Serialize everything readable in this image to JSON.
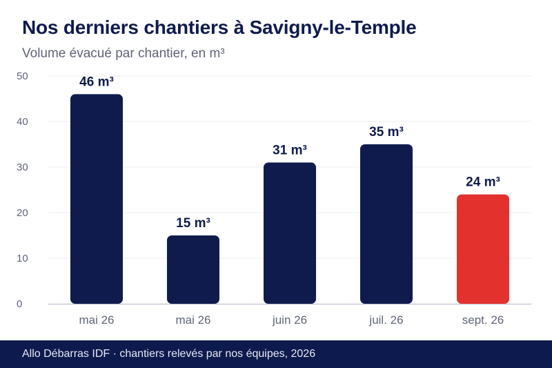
{
  "header": {
    "title": "Nos derniers chantiers à Savigny-le-Temple",
    "subtitle": "Volume évacué par chantier, en m³"
  },
  "footer": {
    "source": "Allo Débarras IDF · chantiers relevés par nos équipes, 2026"
  },
  "colors": {
    "bar_default": "#0f1b4c",
    "bar_highlight": "#e3312e",
    "grid": "#ececf1",
    "axis": "#c8cad8",
    "tick_text": "#5f6478",
    "label_text": "#0f1b4c",
    "footer_bg": "#0d1a4d"
  },
  "chart_data": {
    "type": "bar",
    "categories": [
      "mai 26",
      "mai 26",
      "juin 26",
      "juil. 26",
      "sept. 26"
    ],
    "values": [
      46,
      15,
      31,
      35,
      24
    ],
    "data_labels": [
      "46 m³",
      "15 m³",
      "31 m³",
      "35 m³",
      "24 m³"
    ],
    "highlight_index": 4,
    "ylim": [
      0,
      50
    ],
    "yticks": [
      0,
      10,
      20,
      30,
      40,
      50
    ],
    "grid": true,
    "legend": "none",
    "xlabel": "",
    "ylabel": ""
  }
}
